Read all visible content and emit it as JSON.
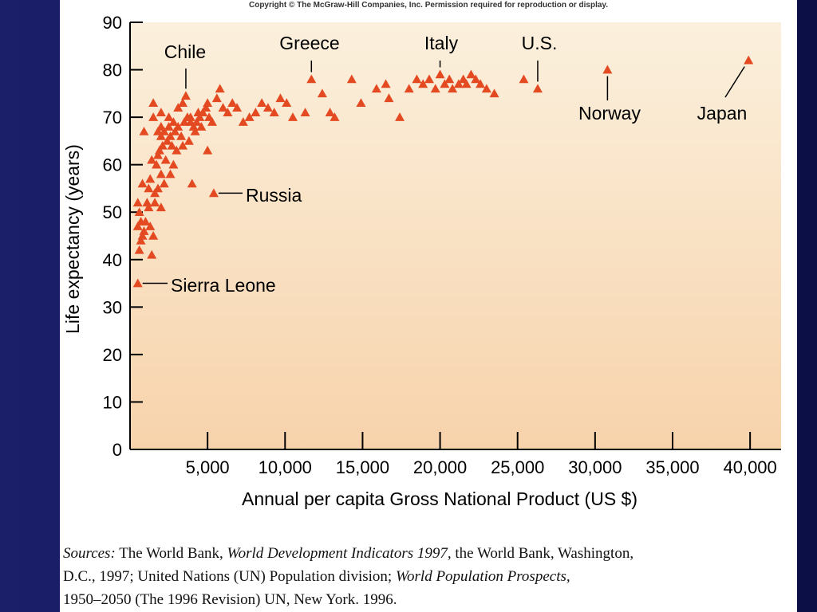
{
  "copyright": "Copyright © The McGraw-Hill Companies, Inc. Permission required for reproduction or display.",
  "colors": {
    "background": "#15195e",
    "plot_top": "#fbf0dd",
    "plot_bottom": "#f7d3ab",
    "marker": "#e44a22",
    "axis": "#000000"
  },
  "chart_data": {
    "type": "scatter",
    "title": "",
    "xlabel": "Annual per capita Gross National Product (US $)",
    "ylabel": "Life expectancy (years)",
    "xlim": [
      0,
      42000
    ],
    "ylim": [
      0,
      90
    ],
    "x_ticks": [
      5000,
      10000,
      15000,
      20000,
      25000,
      30000,
      35000,
      40000
    ],
    "x_tick_labels": [
      "5,000",
      "10,000",
      "15,000",
      "20,000",
      "25,000",
      "30,000",
      "35,000",
      "40,000"
    ],
    "y_ticks": [
      0,
      10,
      20,
      30,
      40,
      50,
      60,
      70,
      80,
      90
    ],
    "y_tick_labels": [
      "0",
      "10",
      "20",
      "30",
      "40",
      "50",
      "60",
      "70",
      "80",
      "90"
    ],
    "marker": "triangle",
    "grid": false,
    "annotations": [
      {
        "label": "Chile",
        "x": 3600,
        "y": 74.5
      },
      {
        "label": "Greece",
        "x": 11700,
        "y": 78
      },
      {
        "label": "Italy",
        "x": 20000,
        "y": 79
      },
      {
        "label": "U.S.",
        "x": 26300,
        "y": 76
      },
      {
        "label": "Norway",
        "x": 30800,
        "y": 80
      },
      {
        "label": "Japan",
        "x": 39900,
        "y": 82
      },
      {
        "label": "Russia",
        "x": 5400,
        "y": 54
      },
      {
        "label": "Sierra Leone",
        "x": 500,
        "y": 35
      }
    ],
    "points": [
      [
        500,
        35
      ],
      [
        600,
        42
      ],
      [
        700,
        44
      ],
      [
        800,
        45
      ],
      [
        500,
        47
      ],
      [
        700,
        48
      ],
      [
        600,
        50
      ],
      [
        900,
        46
      ],
      [
        1000,
        48
      ],
      [
        1300,
        47
      ],
      [
        1400,
        41
      ],
      [
        1500,
        45
      ],
      [
        1100,
        52
      ],
      [
        800,
        56
      ],
      [
        1200,
        55
      ],
      [
        1600,
        54
      ],
      [
        1800,
        55
      ],
      [
        1300,
        57
      ],
      [
        2200,
        56
      ],
      [
        2000,
        58
      ],
      [
        1700,
        60
      ],
      [
        2600,
        58
      ],
      [
        1400,
        61
      ],
      [
        1800,
        62
      ],
      [
        2300,
        61
      ],
      [
        2800,
        60
      ],
      [
        500,
        52
      ],
      [
        1200,
        51
      ],
      [
        1600,
        52
      ],
      [
        2000,
        51
      ],
      [
        1900,
        63
      ],
      [
        2100,
        64
      ],
      [
        2400,
        65
      ],
      [
        2700,
        64
      ],
      [
        2000,
        66
      ],
      [
        2200,
        67
      ],
      [
        2500,
        68
      ],
      [
        2900,
        67
      ],
      [
        3100,
        68
      ],
      [
        3300,
        66
      ],
      [
        3500,
        69
      ],
      [
        3700,
        70
      ],
      [
        3900,
        69
      ],
      [
        4100,
        68
      ],
      [
        4300,
        69
      ],
      [
        4500,
        70
      ],
      [
        4700,
        71
      ],
      [
        4900,
        72
      ],
      [
        5100,
        70
      ],
      [
        5300,
        69
      ],
      [
        1800,
        67
      ],
      [
        2000,
        68
      ],
      [
        2600,
        66
      ],
      [
        3000,
        63
      ],
      [
        3400,
        64
      ],
      [
        3800,
        65
      ],
      [
        4200,
        67
      ],
      [
        4600,
        68
      ],
      [
        5000,
        63
      ],
      [
        1500,
        70
      ],
      [
        900,
        67
      ],
      [
        1500,
        73
      ],
      [
        2000,
        71
      ],
      [
        2500,
        70
      ],
      [
        2800,
        69
      ],
      [
        3100,
        72
      ],
      [
        3400,
        73
      ],
      [
        3600,
        74.5
      ],
      [
        3900,
        70
      ],
      [
        4400,
        71
      ],
      [
        5000,
        73
      ],
      [
        5600,
        74
      ],
      [
        5800,
        76
      ],
      [
        6000,
        72
      ],
      [
        6300,
        71
      ],
      [
        6600,
        73
      ],
      [
        6900,
        72
      ],
      [
        7300,
        69
      ],
      [
        7700,
        70
      ],
      [
        8100,
        71
      ],
      [
        8500,
        73
      ],
      [
        8900,
        72
      ],
      [
        9300,
        71
      ],
      [
        9700,
        74
      ],
      [
        10100,
        73
      ],
      [
        10500,
        70
      ],
      [
        4000,
        56
      ],
      [
        5400,
        54
      ],
      [
        11300,
        71
      ],
      [
        11700,
        78
      ],
      [
        12400,
        75
      ],
      [
        12900,
        71
      ],
      [
        13200,
        70
      ],
      [
        14300,
        78
      ],
      [
        14900,
        73
      ],
      [
        15900,
        76
      ],
      [
        16500,
        77
      ],
      [
        16700,
        74
      ],
      [
        17400,
        70
      ],
      [
        18000,
        76
      ],
      [
        18500,
        78
      ],
      [
        18900,
        77
      ],
      [
        19300,
        78
      ],
      [
        19700,
        76
      ],
      [
        20000,
        79
      ],
      [
        20300,
        77
      ],
      [
        20600,
        78
      ],
      [
        20800,
        76
      ],
      [
        21200,
        77
      ],
      [
        21500,
        78
      ],
      [
        21700,
        77
      ],
      [
        22000,
        79
      ],
      [
        22300,
        78
      ],
      [
        22600,
        77
      ],
      [
        23000,
        76
      ],
      [
        23500,
        75
      ],
      [
        25400,
        78
      ],
      [
        26300,
        76
      ],
      [
        30800,
        80
      ],
      [
        39900,
        82
      ]
    ]
  },
  "sources": {
    "line1": [
      {
        "text": "Sources:",
        "italic": true
      },
      {
        "text": " The World Bank, ",
        "italic": false
      },
      {
        "text": "World Development Indicators 1997,",
        "italic": true
      },
      {
        "text": " the World Bank, Washington,",
        "italic": false
      }
    ],
    "line2": [
      {
        "text": "D.C., 1997; United Nations (UN) Population division; ",
        "italic": false
      },
      {
        "text": "World Population Prospects,",
        "italic": true
      }
    ],
    "line3": [
      {
        "text": "1950–2050 (The 1996 Revision) UN, New York. 1996.",
        "italic": false
      }
    ]
  }
}
